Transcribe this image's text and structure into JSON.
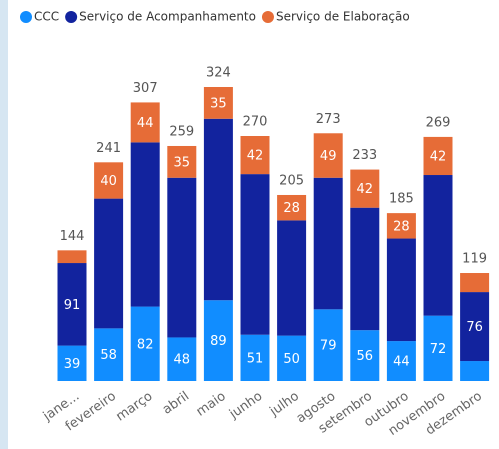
{
  "chart_data": {
    "type": "stacked_bar",
    "categories": [
      "jane...",
      "fevereiro",
      "março",
      "abril",
      "maio",
      "junho",
      "julho",
      "agosto",
      "setembro",
      "outubro",
      "novembro",
      "dezembro"
    ],
    "series": [
      {
        "name": "CCC",
        "color": "#118DFF",
        "values": [
          39,
          58,
          82,
          48,
          89,
          51,
          50,
          79,
          56,
          44,
          72,
          22
        ],
        "value_labels": [
          "39",
          "58",
          "82",
          "48",
          "89",
          "51",
          "50",
          "79",
          "56",
          "44",
          "72",
          null
        ]
      },
      {
        "name": "Serviço de Acompanhamento",
        "color": "#12239E",
        "values": [
          91,
          143,
          181,
          176,
          200,
          177,
          127,
          145,
          135,
          113,
          155,
          76
        ],
        "value_labels": [
          "91",
          null,
          null,
          null,
          null,
          null,
          null,
          null,
          null,
          null,
          null,
          "76"
        ]
      },
      {
        "name": "Serviço de Elaboração",
        "color": "#E66C37",
        "values": [
          14,
          40,
          44,
          35,
          35,
          42,
          28,
          49,
          42,
          28,
          42,
          21
        ],
        "value_labels": [
          null,
          "40",
          "44",
          "35",
          "35",
          "42",
          "28",
          "49",
          "42",
          "28",
          "42",
          null
        ]
      }
    ],
    "totals": [
      144,
      241,
      307,
      259,
      324,
      270,
      205,
      273,
      233,
      185,
      269,
      119
    ]
  }
}
